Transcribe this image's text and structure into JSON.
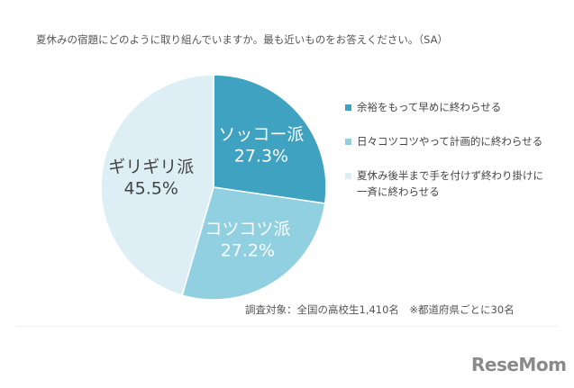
{
  "chart_data": {
    "type": "pie",
    "title": "夏休みの宿題にどのように取り組んでいますか。最も近いものをお答えください。（SA）",
    "categories": [
      "ソッコー派",
      "コツコツ派",
      "ギリギリ派"
    ],
    "values": [
      27.3,
      27.2,
      45.5
    ],
    "value_labels": [
      "27.3%",
      "27.2%",
      "45.5%"
    ],
    "colors": [
      "#3ea2c0",
      "#90d0e0",
      "#ddeff5"
    ],
    "legend": [
      "余裕をもって早めに終わらせる",
      "日々コツコツやって計画的に終わらせる",
      "夏休み後半まで手を付けず終わり掛けに一斉に終わらせる"
    ],
    "note": "調査対象：全国の高校生1,410名　※都道府県ごとに30名"
  },
  "watermark": "ReseMom"
}
